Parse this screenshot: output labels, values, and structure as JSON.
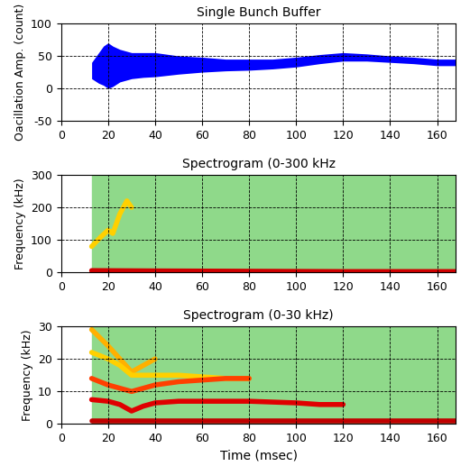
{
  "chart_data": [
    {
      "type": "range_area",
      "title": "Single Bunch Buffer",
      "y_label": "Oacillation Amp. (count)",
      "color": "#0000ff",
      "x": [
        13,
        16,
        18,
        20,
        22,
        25,
        30,
        35,
        40,
        50,
        60,
        70,
        80,
        90,
        100,
        110,
        120,
        130,
        140,
        150,
        160,
        168
      ],
      "values": [
        [
          15,
          40
        ],
        [
          8,
          55
        ],
        [
          5,
          65
        ],
        [
          0,
          70
        ],
        [
          3,
          65
        ],
        [
          10,
          60
        ],
        [
          15,
          55
        ],
        [
          17,
          55
        ],
        [
          18,
          55
        ],
        [
          22,
          50
        ],
        [
          25,
          48
        ],
        [
          27,
          45
        ],
        [
          28,
          45
        ],
        [
          30,
          45
        ],
        [
          33,
          48
        ],
        [
          38,
          52
        ],
        [
          42,
          55
        ],
        [
          42,
          53
        ],
        [
          40,
          50
        ],
        [
          38,
          48
        ],
        [
          35,
          45
        ],
        [
          35,
          45
        ]
      ],
      "xlim": [
        0,
        168
      ],
      "xticks": [
        0,
        20,
        40,
        60,
        80,
        100,
        120,
        140,
        160
      ],
      "ylim": [
        -50,
        100
      ],
      "yticks": [
        -50,
        0,
        50,
        100
      ],
      "grid": true
    },
    {
      "type": "line",
      "title": "Spectrogram (0-300 kHz",
      "y_label": "Frequency (kHz)",
      "series": [
        {
          "color": "#ffd000",
          "x": [
            13,
            15,
            17,
            20,
            22,
            25,
            28,
            30
          ],
          "values": [
            80,
            95,
            110,
            130,
            120,
            180,
            220,
            200
          ]
        },
        {
          "color": "#d00000",
          "x": [
            13,
            40,
            80,
            120,
            168
          ],
          "values": [
            6,
            5,
            4,
            3,
            3
          ]
        }
      ],
      "xlim": [
        0,
        168
      ],
      "xticks": [
        0,
        20,
        40,
        60,
        80,
        100,
        120,
        140,
        160
      ],
      "ylim": [
        0,
        300
      ],
      "yticks": [
        0,
        100,
        200,
        300
      ],
      "grid": true
    },
    {
      "type": "line",
      "title": "Spectrogram (0-30 kHz)",
      "x_label": "Time (msec)",
      "y_label": "Frequency (kHz)",
      "series": [
        {
          "color": "#ffb000",
          "x": [
            13,
            20,
            25,
            30,
            35,
            40
          ],
          "values": [
            29,
            24,
            20,
            16,
            18,
            20
          ]
        },
        {
          "color": "#ffd000",
          "x": [
            13,
            20,
            25,
            30,
            40,
            50,
            70,
            80
          ],
          "values": [
            22,
            20,
            18,
            15,
            15,
            15,
            14,
            14
          ]
        },
        {
          "color": "#ff4000",
          "x": [
            13,
            20,
            25,
            30,
            40,
            50,
            60,
            70,
            80
          ],
          "values": [
            14,
            12,
            11,
            10,
            12,
            13,
            13.5,
            14,
            14
          ]
        },
        {
          "color": "#e00000",
          "x": [
            13,
            20,
            25,
            30,
            35,
            40,
            50,
            60,
            80,
            100,
            110,
            120
          ],
          "values": [
            7.5,
            7,
            6,
            4,
            5.5,
            6.5,
            7,
            7,
            7,
            6.5,
            6,
            6
          ]
        },
        {
          "color": "#c00000",
          "x": [
            13,
            60,
            120,
            168
          ],
          "values": [
            1,
            1,
            1,
            1
          ]
        }
      ],
      "xlim": [
        0,
        168
      ],
      "xticks": [
        0,
        20,
        40,
        60,
        80,
        100,
        120,
        140,
        160
      ],
      "ylim": [
        0,
        30
      ],
      "yticks": [
        0,
        10,
        20,
        30
      ],
      "grid": true
    }
  ]
}
